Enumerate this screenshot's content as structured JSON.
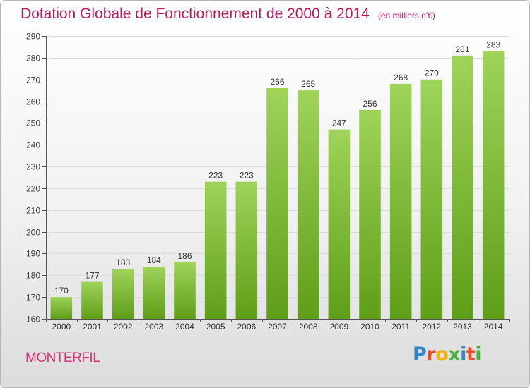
{
  "title": "Dotation Globale de Fonctionnement de 2000 à 2014",
  "units_note": "(en milliers d'€)",
  "commune": "MONTERFIL",
  "logo": {
    "label": "Proxiti",
    "letters": [
      "P",
      "r",
      "o",
      "x",
      "i",
      "t",
      "i"
    ]
  },
  "colors": {
    "title": "#b5195e",
    "commune": "#d9327a",
    "bar_top": "#9fd35a",
    "bar_bottom": "#5f9e18",
    "grid": "#dddddd",
    "axis": "#555555"
  },
  "chart_data": {
    "type": "bar",
    "title": "Dotation Globale de Fonctionnement de 2000 à 2014",
    "subtitle": "(en milliers d'€)",
    "xlabel": "",
    "ylabel": "",
    "categories": [
      "2000",
      "2001",
      "2002",
      "2003",
      "2004",
      "2005",
      "2006",
      "2007",
      "2008",
      "2009",
      "2010",
      "2011",
      "2012",
      "2013",
      "2014"
    ],
    "values": [
      170,
      177,
      183,
      184,
      186,
      223,
      223,
      266,
      265,
      247,
      256,
      268,
      270,
      281,
      283
    ],
    "ylim": [
      160,
      290
    ],
    "yticks": [
      160,
      170,
      180,
      190,
      200,
      210,
      220,
      230,
      240,
      250,
      260,
      270,
      280,
      290
    ],
    "grid": true,
    "data_labels": true,
    "legend": "none"
  }
}
